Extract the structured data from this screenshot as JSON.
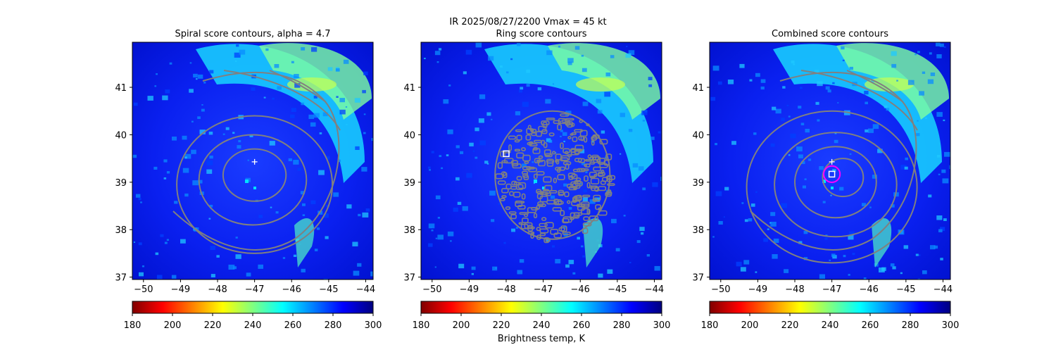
{
  "figure": {
    "suptitle_line1": "IR  2025/08/27/2200    Vmax = 45 kt",
    "colorbar_label": "Brightness temp, K"
  },
  "chart_data": [
    {
      "type": "heatmap",
      "title": "Spiral score contours, alpha =  4.7",
      "xlim": [
        -50.3,
        -43.8
      ],
      "ylim": [
        36.95,
        41.95
      ],
      "xticks": [
        -50,
        -49,
        -48,
        -47,
        -46,
        -45,
        -44
      ],
      "yticks": [
        37,
        38,
        39,
        40,
        41
      ],
      "colormap": "jet",
      "color_range_K": [
        180,
        300
      ],
      "contour_color": "#808080",
      "center_marker": {
        "lon": -47.0,
        "lat": 39.43,
        "symbol": "+"
      },
      "contour_levels": [
        {
          "lon": -47.0,
          "lat": 39.15,
          "rx": 0.85,
          "ry": 0.55
        },
        {
          "lon": -47.05,
          "lat": 39.05,
          "rx": 1.45,
          "ry": 0.95
        },
        {
          "lon": -47.0,
          "lat": 38.95,
          "rx": 2.1,
          "ry": 1.45
        }
      ]
    },
    {
      "type": "heatmap",
      "title": "Ring score contours",
      "xlim": [
        -50.3,
        -43.8
      ],
      "ylim": [
        36.95,
        41.95
      ],
      "xticks": [
        -50,
        -49,
        -48,
        -47,
        -46,
        -45,
        -44
      ],
      "yticks": [
        37,
        38,
        39,
        40,
        41
      ],
      "colormap": "jet",
      "color_range_K": [
        180,
        300
      ],
      "contour_color": "#808080",
      "ring_region": {
        "lon": -46.75,
        "lat": 39.15,
        "rx": 1.55,
        "ry": 1.35
      },
      "square_marker": {
        "lon": -48.0,
        "lat": 39.6
      }
    },
    {
      "type": "heatmap",
      "title": "Combined score contours",
      "xlim": [
        -50.3,
        -43.8
      ],
      "ylim": [
        36.95,
        41.95
      ],
      "xticks": [
        -50,
        -49,
        -48,
        -47,
        -46,
        -45,
        -44
      ],
      "yticks": [
        37,
        38,
        39,
        40,
        41
      ],
      "colormap": "jet",
      "color_range_K": [
        180,
        300
      ],
      "contour_color": "#808080",
      "center_marker": {
        "lon": -47.0,
        "lat": 39.43,
        "symbol": "+"
      },
      "square_marker": {
        "lon": -47.0,
        "lat": 39.17
      },
      "circle_marker": {
        "lon": -47.0,
        "lat": 39.17,
        "radius_deg": 0.22,
        "color": "#ff00ff"
      },
      "contour_levels": [
        {
          "lon": -46.7,
          "lat": 39.1,
          "rx": 0.55,
          "ry": 0.4
        },
        {
          "lon": -46.9,
          "lat": 39.0,
          "rx": 1.1,
          "ry": 0.75
        },
        {
          "lon": -46.9,
          "lat": 38.95,
          "rx": 1.65,
          "ry": 1.1
        },
        {
          "lon": -47.0,
          "lat": 38.9,
          "rx": 2.3,
          "ry": 1.6
        }
      ]
    }
  ],
  "colorbars": [
    {
      "ticks": [
        180,
        200,
        220,
        240,
        260,
        280,
        300
      ]
    },
    {
      "ticks": [
        180,
        200,
        220,
        240,
        260,
        280,
        300
      ]
    },
    {
      "ticks": [
        180,
        200,
        220,
        240,
        260,
        280,
        300
      ]
    }
  ],
  "colors": {
    "jet_stops": [
      "#800000",
      "#ff0000",
      "#ff8000",
      "#ffff00",
      "#80ff80",
      "#00ffff",
      "#0080ff",
      "#0000ff",
      "#000080"
    ],
    "magenta": "#ff00ff"
  }
}
